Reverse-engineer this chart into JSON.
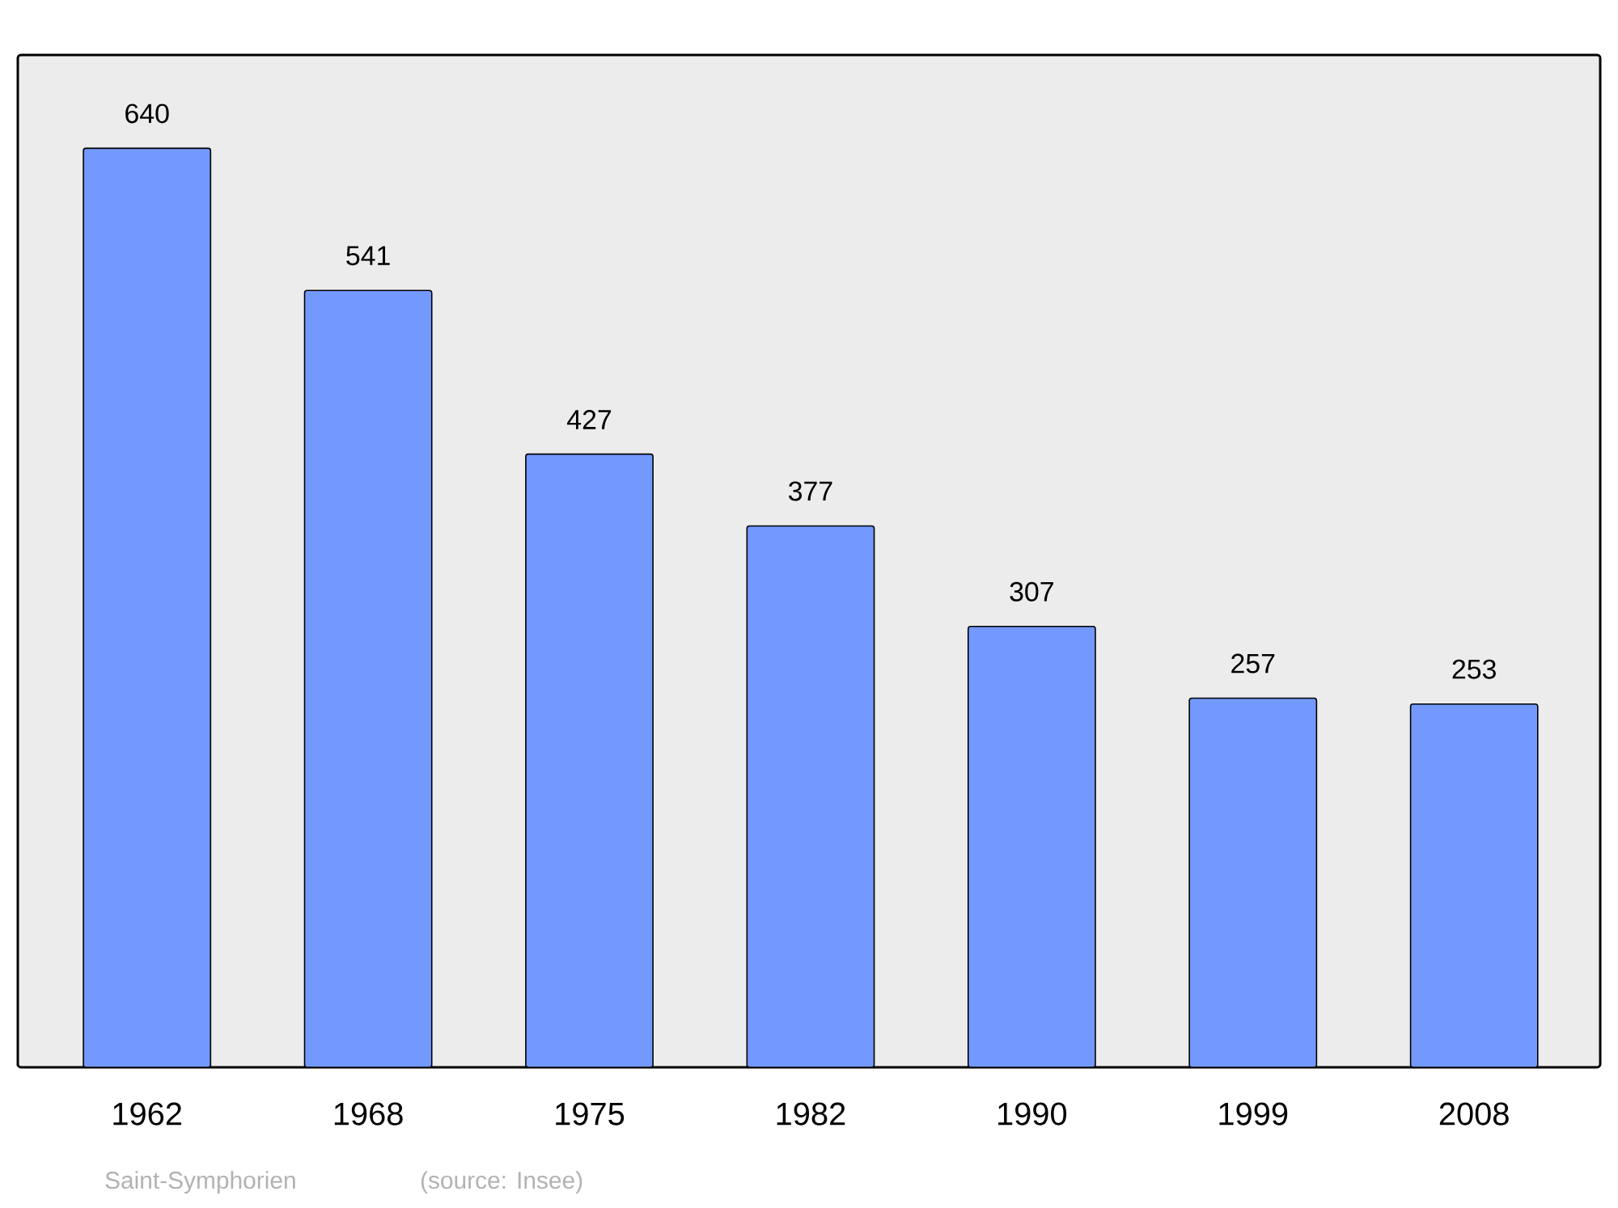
{
  "chart_data": {
    "type": "bar",
    "categories": [
      "1962",
      "1968",
      "1975",
      "1982",
      "1990",
      "1999",
      "2008"
    ],
    "values": [
      640,
      541,
      427,
      377,
      307,
      257,
      253
    ],
    "color": "#7399ff",
    "data_labels": true,
    "ylim": [
      0,
      705
    ],
    "annotations": [
      "Saint-Symphorien",
      "(source: Insee)"
    ]
  }
}
